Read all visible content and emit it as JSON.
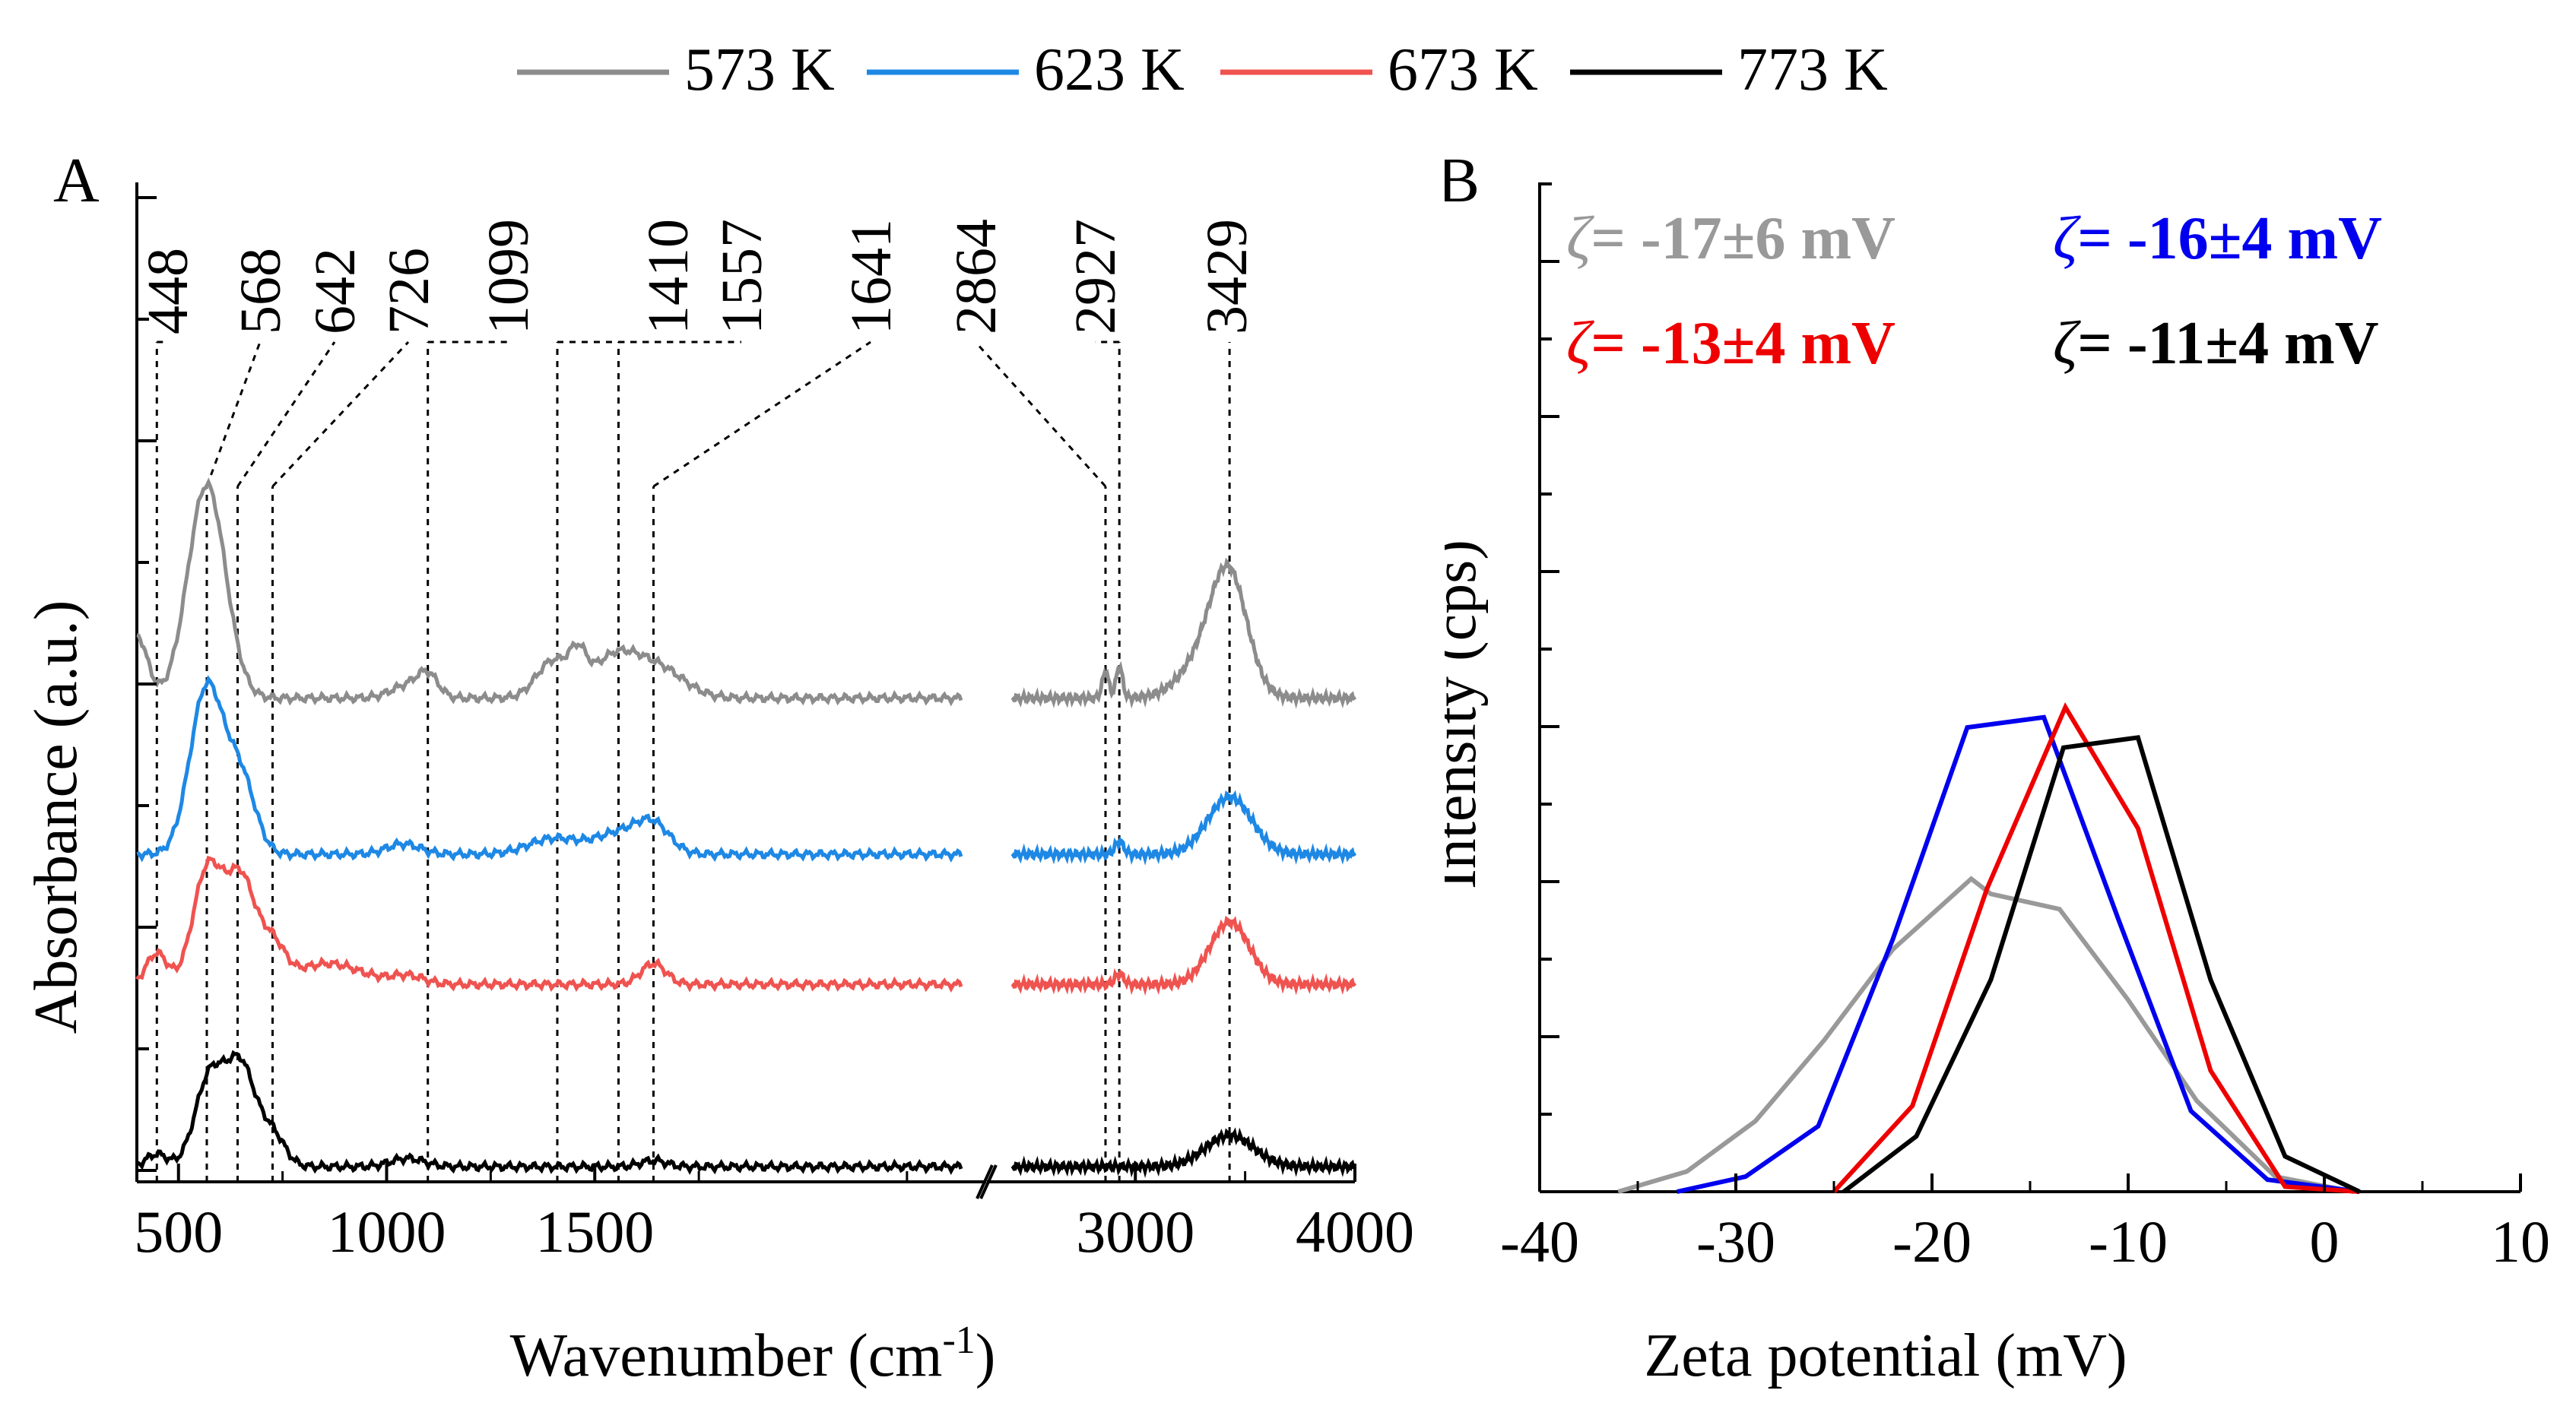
{
  "legend": [
    {
      "label": "573 K",
      "color": "#8c8c8c"
    },
    {
      "label": "623 K",
      "color": "#1e88e5"
    },
    {
      "label": "673 K",
      "color": "#ef5350"
    },
    {
      "label": "773 K",
      "color": "#000000"
    }
  ],
  "chart_data": [
    {
      "panel": "A",
      "type": "line",
      "title": "",
      "xlabel": "Wavenumber (cm",
      "xlabel_sup": "-1",
      "xlabel_close": ")",
      "ylabel": "Absorbance (a.u.)",
      "broken_axis": true,
      "xlim_left": [
        400,
        2400
      ],
      "xlim_right": [
        2400,
        4000
      ],
      "xticks_left": [
        {
          "v": 500,
          "label": "500"
        },
        {
          "v": 1000,
          "label": "1000"
        },
        {
          "v": 1500,
          "label": "1500"
        }
      ],
      "xticks_right": [
        {
          "v": 3000,
          "label": "3000"
        },
        {
          "v": 4000,
          "label": "4000"
        }
      ],
      "peak_labels": [
        {
          "label": "448",
          "wn": 448
        },
        {
          "label": "568",
          "wn": 568
        },
        {
          "label": "642",
          "wn": 642
        },
        {
          "label": "726",
          "wn": 726
        },
        {
          "label": "1099",
          "wn": 1099
        },
        {
          "label": "1410",
          "wn": 1410
        },
        {
          "label": "1557",
          "wn": 1557
        },
        {
          "label": "1641",
          "wn": 1641
        },
        {
          "label": "2864",
          "wn": 2864
        },
        {
          "label": "2927",
          "wn": 2927
        },
        {
          "label": "3429",
          "wn": 3429
        }
      ],
      "series": [
        {
          "name": "573 K",
          "color": "#8c8c8c",
          "offset": 4.5,
          "peaks_left": [
            [
              400,
              0.6,
              25
            ],
            [
              568,
              2.05,
              45
            ],
            [
              1050,
              0.12,
              40
            ],
            [
              1099,
              0.2,
              25
            ],
            [
              1400,
              0.35,
              40
            ],
            [
              1460,
              0.28,
              20
            ],
            [
              1550,
              0.4,
              60
            ],
            [
              1660,
              0.25,
              60
            ]
          ],
          "peaks_right": [
            [
              2864,
              0.25,
              15
            ],
            [
              2927,
              0.3,
              15
            ],
            [
              3350,
              0.45,
              120
            ],
            [
              3429,
              0.9,
              80
            ]
          ]
        },
        {
          "name": "623 K",
          "color": "#1e88e5",
          "offset": 3.0,
          "peaks_left": [
            [
              568,
              1.6,
              40
            ],
            [
              650,
              0.7,
              35
            ],
            [
              1040,
              0.1,
              40
            ],
            [
              1400,
              0.15,
              60
            ],
            [
              1560,
              0.2,
              60
            ],
            [
              1641,
              0.25,
              40
            ]
          ],
          "peaks_right": [
            [
              2927,
              0.12,
              20
            ],
            [
              3429,
              0.55,
              100
            ]
          ]
        },
        {
          "name": "673 K",
          "color": "#ef5350",
          "offset": 1.75,
          "peaks_left": [
            [
              448,
              0.3,
              25
            ],
            [
              570,
              1.1,
              35
            ],
            [
              650,
              1.0,
              35
            ],
            [
              726,
              0.35,
              30
            ],
            [
              860,
              0.2,
              80
            ],
            [
              1050,
              0.08,
              40
            ],
            [
              1641,
              0.2,
              30
            ]
          ],
          "peaks_right": [
            [
              2927,
              0.1,
              20
            ],
            [
              3429,
              0.6,
              90
            ]
          ]
        },
        {
          "name": "773 K",
          "color": "#000000",
          "offset": 0.0,
          "peaks_left": [
            [
              448,
              0.12,
              25
            ],
            [
              575,
              0.85,
              35
            ],
            [
              650,
              0.95,
              35
            ],
            [
              726,
              0.3,
              30
            ],
            [
              1050,
              0.08,
              40
            ],
            [
              1641,
              0.06,
              30
            ]
          ],
          "peaks_right": [
            [
              3429,
              0.3,
              110
            ]
          ]
        }
      ]
    },
    {
      "panel": "B",
      "type": "line",
      "title": "",
      "xlabel": "Zeta potential (mV)",
      "ylabel": "Intensity (cps)",
      "xlim": [
        -40,
        10
      ],
      "ylim": [
        0,
        10
      ],
      "xticks": [
        -40,
        -30,
        -20,
        -10,
        0,
        10
      ],
      "xtick_labels": [
        "-40",
        "-30",
        "-20",
        "-10",
        "0",
        "10"
      ],
      "annotations": [
        {
          "prefix": "ζ",
          "text": "= -17±6 mV",
          "color": "#999999"
        },
        {
          "prefix": "ζ",
          "text": "= -16±4 mV",
          "color": "#0000ee"
        },
        {
          "prefix": "ζ",
          "text": "= -13±4 mV",
          "color": "#ee0000"
        },
        {
          "prefix": "ζ",
          "text": "= -11±4 mV",
          "color": "#000000"
        }
      ],
      "series": [
        {
          "name": "573 K",
          "color": "#999999",
          "x": [
            -36,
            -32.5,
            -29,
            -25.5,
            -22,
            -18,
            -17,
            -13.5,
            -10,
            -6.5,
            -2.5,
            1.5
          ],
          "y": [
            0,
            0.2,
            0.7,
            1.5,
            2.4,
            3.1,
            2.95,
            2.8,
            1.9,
            0.9,
            0.15,
            0
          ]
        },
        {
          "name": "623 K",
          "color": "#0000ee",
          "x": [
            -33,
            -29.5,
            -25.8,
            -22,
            -18.2,
            -14.3,
            -10.5,
            -6.8,
            -2.9,
            1.8
          ],
          "y": [
            0,
            0.15,
            0.65,
            2.5,
            4.6,
            4.7,
            2.7,
            0.8,
            0.12,
            0
          ]
        },
        {
          "name": "673 K",
          "color": "#ee0000",
          "x": [
            -25,
            -21,
            -17.2,
            -13.2,
            -9.5,
            -5.8,
            -2.0,
            1.8
          ],
          "y": [
            0,
            0.85,
            3.0,
            4.8,
            3.6,
            1.2,
            0.05,
            0
          ]
        },
        {
          "name": "773 K",
          "color": "#000000",
          "x": [
            -24.5,
            -20.8,
            -17,
            -13.3,
            -9.5,
            -5.8,
            -2.0,
            1.8
          ],
          "y": [
            0,
            0.55,
            2.1,
            4.4,
            4.5,
            2.1,
            0.35,
            0
          ]
        }
      ]
    }
  ]
}
